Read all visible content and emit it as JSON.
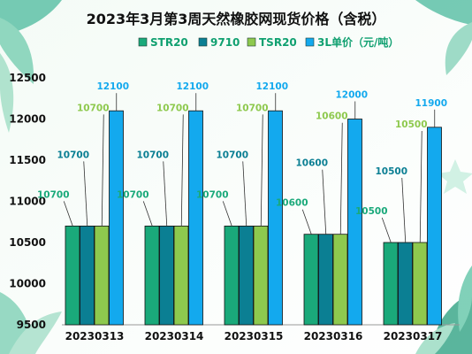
{
  "chart_data": {
    "type": "bar",
    "title": "2023年3月第3周天然橡胶网现货价格（含税）",
    "categories": [
      "20230313",
      "20230314",
      "20230315",
      "20230316",
      "20230317"
    ],
    "series": [
      {
        "name": "STR20",
        "color": "#1aa97a",
        "values": [
          10700,
          10700,
          10700,
          10600,
          10500
        ]
      },
      {
        "name": "9710",
        "color": "#0b7f93",
        "values": [
          10700,
          10700,
          10700,
          10600,
          10500
        ]
      },
      {
        "name": "TSR20",
        "color": "#8ec94e",
        "values": [
          10700,
          10700,
          10700,
          10600,
          10500
        ]
      },
      {
        "name": "3L单价（元/吨）",
        "color": "#13a9ee",
        "values": [
          12100,
          12100,
          12100,
          12000,
          11900
        ]
      }
    ],
    "yticks": [
      9500,
      10000,
      10500,
      11000,
      11500,
      12000,
      12500
    ],
    "ylim": [
      9500,
      12500
    ],
    "legend_position": "top",
    "grid": false
  }
}
